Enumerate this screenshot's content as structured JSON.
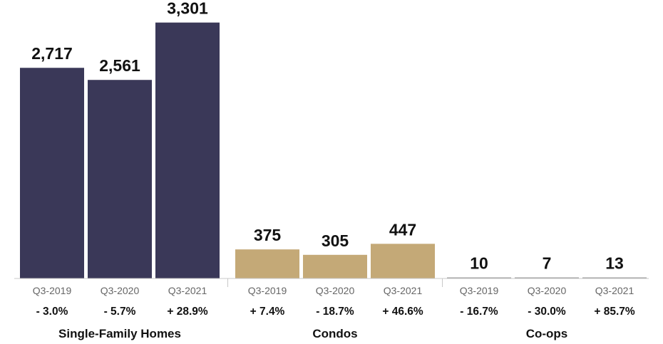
{
  "chart_data": {
    "type": "bar",
    "title": "",
    "xlabel": "",
    "ylabel": "",
    "ylim": [
      0,
      3500
    ],
    "grid": false,
    "legend": "none",
    "groups": [
      {
        "name": "Single-Family Homes",
        "color": "#3a3858",
        "bars": [
          {
            "category": "Q3-2019",
            "value": 2717,
            "value_label": "2,717",
            "change": "- 3.0%"
          },
          {
            "category": "Q3-2020",
            "value": 2561,
            "value_label": "2,561",
            "change": "- 5.7%"
          },
          {
            "category": "Q3-2021",
            "value": 3301,
            "value_label": "3,301",
            "change": "+ 28.9%"
          }
        ]
      },
      {
        "name": "Condos",
        "color": "#c4a977",
        "bars": [
          {
            "category": "Q3-2019",
            "value": 375,
            "value_label": "375",
            "change": "+ 7.4%"
          },
          {
            "category": "Q3-2020",
            "value": 305,
            "value_label": "305",
            "change": "- 18.7%"
          },
          {
            "category": "Q3-2021",
            "value": 447,
            "value_label": "447",
            "change": "+ 46.6%"
          }
        ]
      },
      {
        "name": "Co-ops",
        "color": "#9a9a9a",
        "bars": [
          {
            "category": "Q3-2019",
            "value": 10,
            "value_label": "10",
            "change": "- 16.7%"
          },
          {
            "category": "Q3-2020",
            "value": 7,
            "value_label": "7",
            "change": "- 30.0%"
          },
          {
            "category": "Q3-2021",
            "value": 13,
            "value_label": "13",
            "change": "+ 85.7%"
          }
        ]
      }
    ]
  }
}
